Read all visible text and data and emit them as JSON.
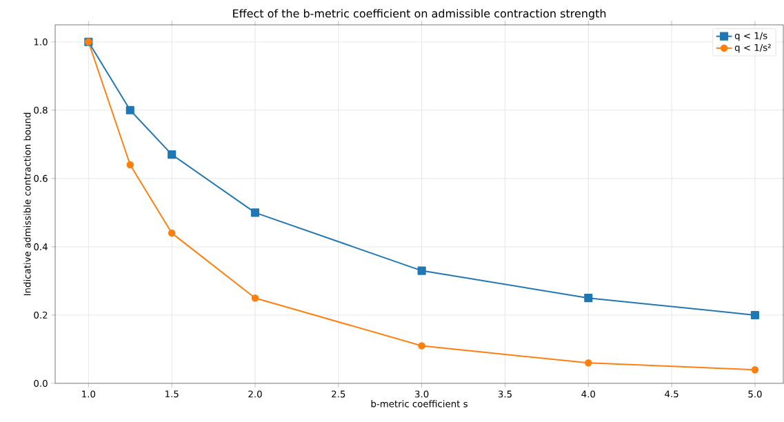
{
  "chart_data": {
    "type": "line",
    "title": "Effect of the b-metric coefficient on admissible contraction strength",
    "xlabel": "b-metric coefficient s",
    "ylabel": "Indicative admissible contraction bound",
    "x": [
      1.0,
      1.25,
      1.5,
      2.0,
      3.0,
      4.0,
      5.0
    ],
    "series": [
      {
        "name": "q < 1/s",
        "color": "#1f77b4",
        "marker": "square",
        "values": [
          1.0,
          0.8,
          0.67,
          0.5,
          0.33,
          0.25,
          0.2
        ]
      },
      {
        "name": "q < 1/s²",
        "color": "#ff7f0e",
        "marker": "circle",
        "values": [
          1.0,
          0.64,
          0.44,
          0.25,
          0.11,
          0.06,
          0.04
        ]
      }
    ],
    "xlim": [
      0.8,
      5.17
    ],
    "ylim": [
      0,
      1.05
    ],
    "xticks": [
      {
        "value": 1.0,
        "label": "1.0"
      },
      {
        "value": 1.5,
        "label": "1.5"
      },
      {
        "value": 2.0,
        "label": "2.0"
      },
      {
        "value": 2.5,
        "label": "2.5"
      },
      {
        "value": 3.0,
        "label": "3.0"
      },
      {
        "value": 3.5,
        "label": "3.5"
      },
      {
        "value": 4.0,
        "label": "4.0"
      },
      {
        "value": 4.5,
        "label": "4.5"
      },
      {
        "value": 5.0,
        "label": "5.0"
      }
    ],
    "yticks": [
      {
        "value": 0.0,
        "label": "0.0"
      },
      {
        "value": 0.2,
        "label": "0.2"
      },
      {
        "value": 0.4,
        "label": "0.4"
      },
      {
        "value": 0.6,
        "label": "0.6"
      },
      {
        "value": 0.8,
        "label": "0.8"
      },
      {
        "value": 1.0,
        "label": "1.0"
      }
    ],
    "grid": true,
    "legend": "top right",
    "line_style": "solid"
  }
}
